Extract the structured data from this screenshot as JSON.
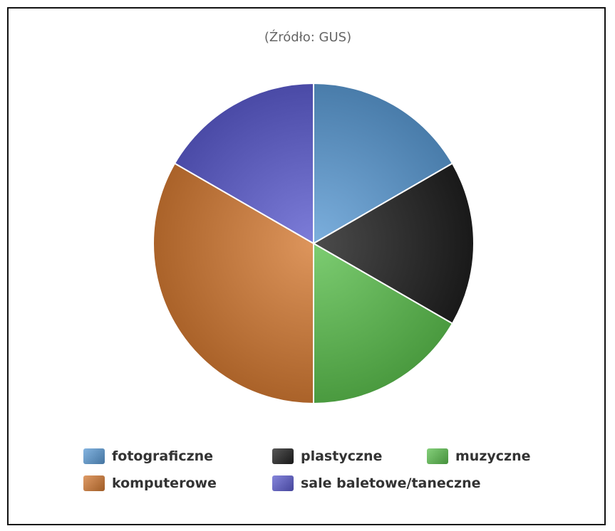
{
  "chart_data": {
    "type": "pie",
    "subtitle": "(Źródło: GUS)",
    "categories": [
      "fotograficzne",
      "plastyczne",
      "muzyczne",
      "komputerowe",
      "sale baletowe/taneczne"
    ],
    "values": [
      1,
      1,
      1,
      2,
      1
    ],
    "colors": [
      "#5b9bd5",
      "#1f1f1f",
      "#5cc04f",
      "#d47a33",
      "#5c5ccf"
    ],
    "legend_position": "bottom"
  }
}
